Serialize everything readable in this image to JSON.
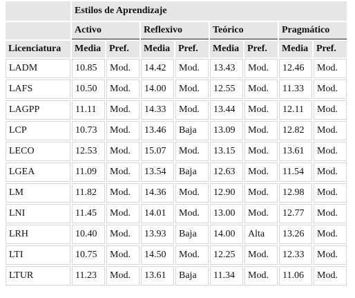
{
  "header": {
    "group": "Estilos de Aprendizaje",
    "styles": [
      "Activo",
      "Reflexivo",
      "Teórico",
      "Pragmático"
    ],
    "first": "Licenciatura",
    "sub_headers": [
      "Media",
      "Pref.",
      "Media",
      "Pref.",
      "Media",
      "Pref.",
      "Media",
      "Pref."
    ]
  },
  "table": {
    "rows": [
      [
        "LADM",
        "10.85",
        "Mod.",
        "14.42",
        "Mod.",
        "13.43",
        "Mod.",
        "12.46",
        "Mod."
      ],
      [
        "LAFS",
        "10.50",
        "Mod.",
        "14.00",
        "Mod.",
        "12.55",
        "Mod.",
        "11.33",
        "Mod."
      ],
      [
        "LAGPP",
        "11.11",
        "Mod.",
        "14.33",
        "Mod.",
        "13.44",
        "Mod.",
        "12.11",
        "Mod."
      ],
      [
        "LCP",
        "10.73",
        "Mod.",
        "13.46",
        "Baja",
        "13.09",
        "Mod.",
        "12.82",
        "Mod."
      ],
      [
        "LECO",
        "12.53",
        "Mod.",
        "15.07",
        "Mod.",
        "13.15",
        "Mod.",
        "13.61",
        "Mod."
      ],
      [
        "LGEA",
        "11.09",
        "Mod.",
        "13.54",
        "Baja",
        "12.63",
        "Mod.",
        "11.54",
        "Mod."
      ],
      [
        "LM",
        "11.82",
        "Mod.",
        "14.36",
        "Mod.",
        "12.90",
        "Mod.",
        "12.98",
        "Mod."
      ],
      [
        "LNI",
        "11.45",
        "Mod.",
        "14.01",
        "Mod.",
        "13.00",
        "Mod.",
        "12.77",
        "Mod."
      ],
      [
        "LRH",
        "10.40",
        "Mod.",
        "13.93",
        "Baja",
        "14.00",
        "Alta",
        "13.26",
        "Mod."
      ],
      [
        "LTI",
        "10.75",
        "Mod.",
        "14.50",
        "Mod.",
        "12.25",
        "Mod.",
        "12.33",
        "Mod."
      ],
      [
        "LTUR",
        "11.23",
        "Mod.",
        "13.61",
        "Baja",
        "11.34",
        "Mod.",
        "11.06",
        "Mod."
      ]
    ]
  }
}
